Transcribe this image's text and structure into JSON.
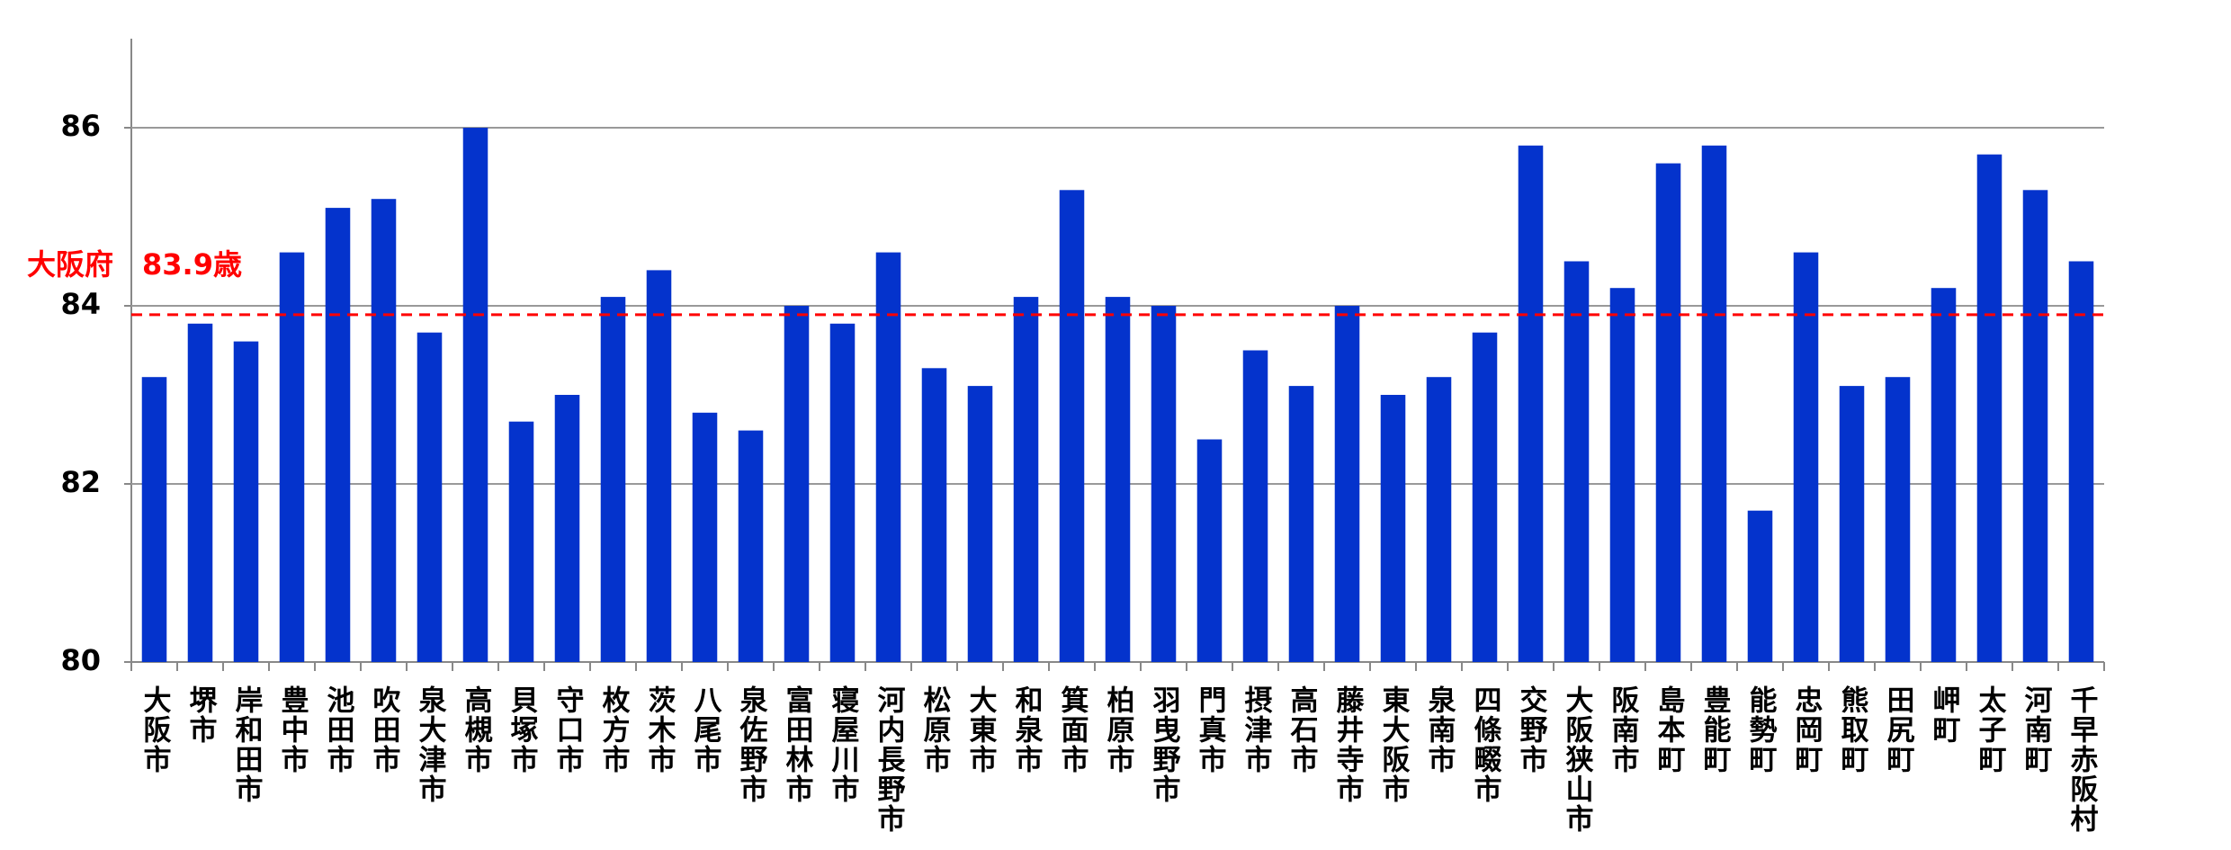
{
  "chart_data": {
    "type": "bar",
    "categories": [
      "大阪市",
      "堺市",
      "岸和田市",
      "豊中市",
      "池田市",
      "吹田市",
      "泉大津市",
      "高槻市",
      "貝塚市",
      "守口市",
      "枚方市",
      "茨木市",
      "八尾市",
      "泉佐野市",
      "富田林市",
      "寝屋川市",
      "河内長野市",
      "松原市",
      "大東市",
      "和泉市",
      "箕面市",
      "柏原市",
      "羽曳野市",
      "門真市",
      "摂津市",
      "高石市",
      "藤井寺市",
      "東大阪市",
      "泉南市",
      "四條畷市",
      "交野市",
      "大阪狭山市",
      "阪南市",
      "島本町",
      "豊能町",
      "能勢町",
      "忠岡町",
      "熊取町",
      "田尻町",
      "岬町",
      "太子町",
      "河南町",
      "千早赤阪村"
    ],
    "values": [
      83.2,
      83.8,
      83.6,
      84.6,
      85.1,
      85.2,
      83.7,
      86.0,
      82.7,
      83.0,
      84.1,
      84.4,
      82.8,
      82.6,
      84.0,
      83.8,
      84.6,
      83.3,
      83.1,
      84.1,
      85.3,
      84.1,
      84.0,
      82.5,
      83.5,
      83.1,
      84.0,
      83.0,
      83.2,
      83.7,
      85.8,
      84.5,
      84.2,
      85.6,
      85.8,
      81.7,
      84.6,
      83.1,
      83.2,
      84.2,
      85.7,
      85.3,
      84.5
    ],
    "color": "#0433cc",
    "ylim": [
      80,
      87
    ],
    "yticks": [
      80,
      82,
      84,
      86
    ],
    "grid": true,
    "reference_line": {
      "value": 83.9,
      "label": "大阪府　83.9歳",
      "color": "#ff0000"
    }
  }
}
